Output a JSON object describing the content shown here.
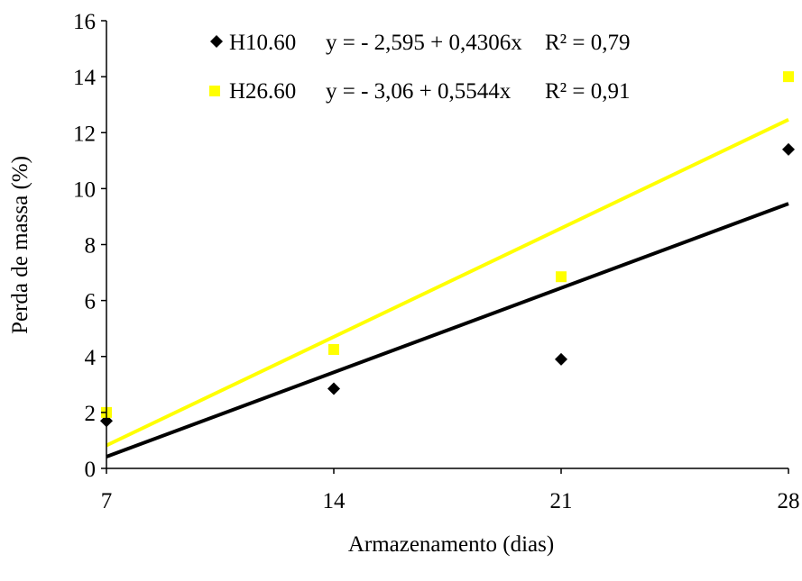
{
  "chart_data": {
    "type": "scatter",
    "xlabel": "Armazenamento (dias)",
    "ylabel": "Perda de massa (%)",
    "x_ticks": [
      "7",
      "14",
      "21",
      "28"
    ],
    "y_ticks": [
      "0",
      "2",
      "4",
      "6",
      "8",
      "10",
      "12",
      "14",
      "16"
    ],
    "xlim": [
      7,
      28
    ],
    "ylim": [
      0,
      16
    ],
    "grid": false,
    "legend_position": "top-left",
    "series": [
      {
        "name": "H10.60",
        "marker": "diamond",
        "color": "#000000",
        "x": [
          7,
          14,
          21,
          28
        ],
        "y": [
          1.7,
          2.85,
          3.9,
          11.4
        ],
        "trendline": {
          "intercept": -2.595,
          "slope": 0.4306
        },
        "equation": "y = - 2,595 + 0,4306x",
        "r2": "R² = 0,79"
      },
      {
        "name": "H26.60",
        "marker": "square",
        "color": "#FFFF00",
        "x": [
          7,
          14,
          21,
          28
        ],
        "y": [
          2.0,
          4.25,
          6.85,
          14.0
        ],
        "trendline": {
          "intercept": -3.06,
          "slope": 0.5544
        },
        "equation": "y = - 3,06 + 0,5544x",
        "r2": "R² = 0,91"
      }
    ]
  }
}
